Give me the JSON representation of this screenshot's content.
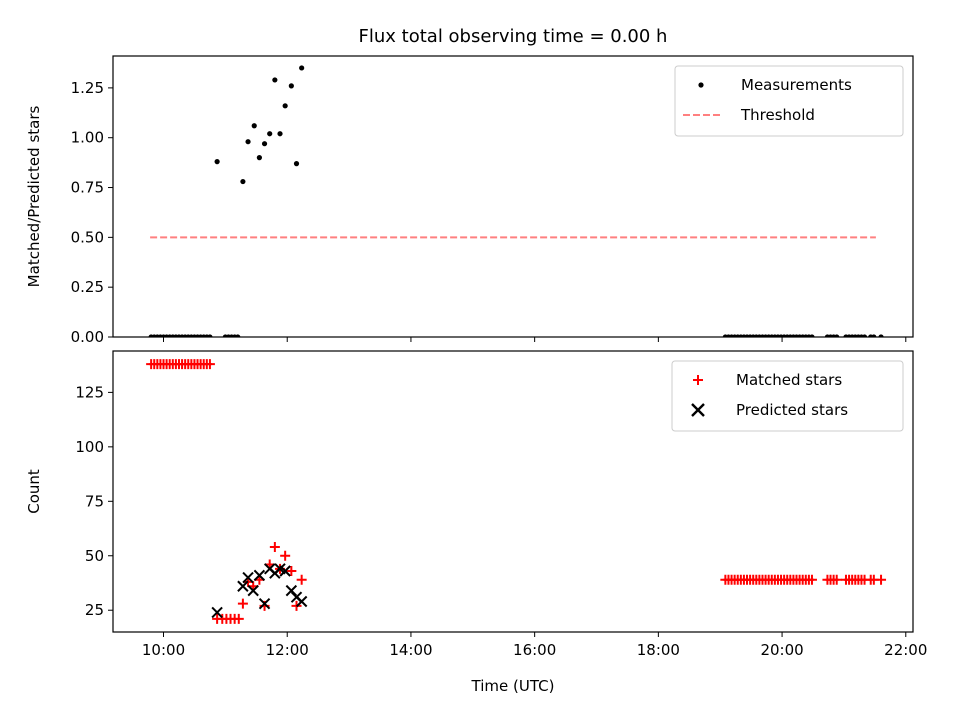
{
  "chart_data": [
    {
      "type": "scatter",
      "title": "Flux total observing time = 0.00 h",
      "xlabel": "",
      "ylabel": "Matched/Predicted stars",
      "xlim": [
        "09:11",
        "22:07"
      ],
      "ylim": [
        0,
        1.41
      ],
      "yticks": [
        0,
        0.25,
        0.5,
        0.75,
        1.0,
        1.25
      ],
      "ytick_labels": [
        "0.00",
        "0.25",
        "0.50",
        "0.75",
        "1.00",
        "1.25"
      ],
      "xticks": [
        "10:00",
        "12:00",
        "14:00",
        "16:00",
        "18:00",
        "20:00",
        "22:00"
      ],
      "grid": false,
      "legend": "top-right",
      "series": [
        {
          "name": "Measurements",
          "style": "dots",
          "color": "#000000",
          "points": [
            [
              "09:48",
              0
            ],
            [
              "09:51",
              0
            ],
            [
              "09:54",
              0
            ],
            [
              "09:57",
              0
            ],
            [
              "10:00",
              0
            ],
            [
              "10:03",
              0
            ],
            [
              "10:06",
              0
            ],
            [
              "10:09",
              0
            ],
            [
              "10:12",
              0
            ],
            [
              "10:15",
              0
            ],
            [
              "10:18",
              0
            ],
            [
              "10:21",
              0
            ],
            [
              "10:24",
              0
            ],
            [
              "10:27",
              0
            ],
            [
              "10:30",
              0
            ],
            [
              "10:33",
              0
            ],
            [
              "10:36",
              0
            ],
            [
              "10:39",
              0
            ],
            [
              "10:42",
              0
            ],
            [
              "10:45",
              0
            ],
            [
              "10:52",
              0.88
            ],
            [
              "11:00",
              0
            ],
            [
              "11:03",
              0
            ],
            [
              "11:06",
              0
            ],
            [
              "11:09",
              0
            ],
            [
              "11:12",
              0
            ],
            [
              "11:17",
              0.78
            ],
            [
              "11:22",
              0.98
            ],
            [
              "11:28",
              1.06
            ],
            [
              "11:33",
              0.9
            ],
            [
              "11:38",
              0.97
            ],
            [
              "11:43",
              1.02
            ],
            [
              "11:48",
              1.29
            ],
            [
              "11:53",
              1.02
            ],
            [
              "11:58",
              1.16
            ],
            [
              "12:04",
              1.26
            ],
            [
              "12:09",
              0.87
            ],
            [
              "12:14",
              1.35
            ],
            [
              "19:05",
              0
            ],
            [
              "19:08",
              0
            ],
            [
              "19:11",
              0
            ],
            [
              "19:14",
              0
            ],
            [
              "19:17",
              0
            ],
            [
              "19:20",
              0
            ],
            [
              "19:23",
              0
            ],
            [
              "19:26",
              0
            ],
            [
              "19:29",
              0
            ],
            [
              "19:32",
              0
            ],
            [
              "19:35",
              0
            ],
            [
              "19:38",
              0
            ],
            [
              "19:41",
              0
            ],
            [
              "19:44",
              0
            ],
            [
              "19:47",
              0
            ],
            [
              "19:50",
              0
            ],
            [
              "19:53",
              0
            ],
            [
              "19:56",
              0
            ],
            [
              "19:59",
              0
            ],
            [
              "20:02",
              0
            ],
            [
              "20:05",
              0
            ],
            [
              "20:08",
              0
            ],
            [
              "20:11",
              0
            ],
            [
              "20:14",
              0
            ],
            [
              "20:17",
              0
            ],
            [
              "20:20",
              0
            ],
            [
              "20:23",
              0
            ],
            [
              "20:26",
              0
            ],
            [
              "20:29",
              0
            ],
            [
              "20:44",
              0
            ],
            [
              "20:47",
              0
            ],
            [
              "20:50",
              0
            ],
            [
              "20:53",
              0
            ],
            [
              "21:02",
              0
            ],
            [
              "21:05",
              0
            ],
            [
              "21:08",
              0
            ],
            [
              "21:11",
              0
            ],
            [
              "21:14",
              0
            ],
            [
              "21:17",
              0
            ],
            [
              "21:20",
              0
            ],
            [
              "21:26",
              0
            ],
            [
              "21:29",
              0
            ],
            [
              "21:36",
              0
            ]
          ]
        },
        {
          "name": "Threshold",
          "style": "dashed-line",
          "color": "#ff8080",
          "points": [
            [
              "09:47",
              0.5
            ],
            [
              "21:31",
              0.5
            ]
          ]
        }
      ]
    },
    {
      "type": "scatter",
      "title": "",
      "xlabel": "Time (UTC)",
      "ylabel": "Count",
      "xlim": [
        "09:11",
        "22:07"
      ],
      "ylim": [
        15,
        144
      ],
      "yticks": [
        25,
        50,
        75,
        100,
        125
      ],
      "ytick_labels": [
        "25",
        "50",
        "75",
        "100",
        "125"
      ],
      "xticks": [
        "10:00",
        "12:00",
        "14:00",
        "16:00",
        "18:00",
        "20:00",
        "22:00"
      ],
      "xtick_labels": [
        "10:00",
        "12:00",
        "14:00",
        "16:00",
        "18:00",
        "20:00",
        "22:00"
      ],
      "grid": false,
      "legend": "top-right",
      "series": [
        {
          "name": "Matched stars",
          "style": "plus",
          "color": "#ff0000",
          "points": [
            [
              "09:48",
              138
            ],
            [
              "09:51",
              138
            ],
            [
              "09:54",
              138
            ],
            [
              "09:57",
              138
            ],
            [
              "10:00",
              138
            ],
            [
              "10:03",
              138
            ],
            [
              "10:06",
              138
            ],
            [
              "10:09",
              138
            ],
            [
              "10:12",
              138
            ],
            [
              "10:15",
              138
            ],
            [
              "10:18",
              138
            ],
            [
              "10:21",
              138
            ],
            [
              "10:24",
              138
            ],
            [
              "10:27",
              138
            ],
            [
              "10:30",
              138
            ],
            [
              "10:33",
              138
            ],
            [
              "10:36",
              138
            ],
            [
              "10:39",
              138
            ],
            [
              "10:42",
              138
            ],
            [
              "10:45",
              138
            ],
            [
              "10:52",
              21
            ],
            [
              "10:57",
              21
            ],
            [
              "11:01",
              21
            ],
            [
              "11:05",
              21
            ],
            [
              "11:09",
              21
            ],
            [
              "11:13",
              21
            ],
            [
              "11:17",
              28
            ],
            [
              "11:22",
              38
            ],
            [
              "11:27",
              36
            ],
            [
              "11:33",
              39
            ],
            [
              "11:38",
              27
            ],
            [
              "11:43",
              46
            ],
            [
              "11:48",
              54
            ],
            [
              "11:53",
              44
            ],
            [
              "11:58",
              50
            ],
            [
              "12:04",
              43
            ],
            [
              "12:09",
              27
            ],
            [
              "12:14",
              39
            ],
            [
              "19:05",
              39
            ],
            [
              "19:08",
              39
            ],
            [
              "19:11",
              39
            ],
            [
              "19:14",
              39
            ],
            [
              "19:17",
              39
            ],
            [
              "19:20",
              39
            ],
            [
              "19:23",
              39
            ],
            [
              "19:26",
              39
            ],
            [
              "19:29",
              39
            ],
            [
              "19:32",
              39
            ],
            [
              "19:35",
              39
            ],
            [
              "19:38",
              39
            ],
            [
              "19:41",
              39
            ],
            [
              "19:44",
              39
            ],
            [
              "19:47",
              39
            ],
            [
              "19:50",
              39
            ],
            [
              "19:53",
              39
            ],
            [
              "19:56",
              39
            ],
            [
              "19:59",
              39
            ],
            [
              "20:02",
              39
            ],
            [
              "20:05",
              39
            ],
            [
              "20:08",
              39
            ],
            [
              "20:11",
              39
            ],
            [
              "20:14",
              39
            ],
            [
              "20:17",
              39
            ],
            [
              "20:20",
              39
            ],
            [
              "20:23",
              39
            ],
            [
              "20:26",
              39
            ],
            [
              "20:29",
              39
            ],
            [
              "20:44",
              39
            ],
            [
              "20:47",
              39
            ],
            [
              "20:50",
              39
            ],
            [
              "20:53",
              39
            ],
            [
              "21:02",
              39
            ],
            [
              "21:05",
              39
            ],
            [
              "21:08",
              39
            ],
            [
              "21:11",
              39
            ],
            [
              "21:14",
              39
            ],
            [
              "21:17",
              39
            ],
            [
              "21:20",
              39
            ],
            [
              "21:26",
              39
            ],
            [
              "21:29",
              39
            ],
            [
              "21:36",
              39
            ]
          ]
        },
        {
          "name": "Predicted stars",
          "style": "x",
          "color": "#000000",
          "points": [
            [
              "10:52",
              24
            ],
            [
              "11:17",
              36
            ],
            [
              "11:22",
              40
            ],
            [
              "11:27",
              34
            ],
            [
              "11:33",
              41
            ],
            [
              "11:38",
              28
            ],
            [
              "11:43",
              44
            ],
            [
              "11:48",
              42
            ],
            [
              "11:53",
              44
            ],
            [
              "11:58",
              43
            ],
            [
              "12:04",
              34
            ],
            [
              "12:09",
              31
            ],
            [
              "12:14",
              29
            ]
          ]
        }
      ]
    }
  ]
}
